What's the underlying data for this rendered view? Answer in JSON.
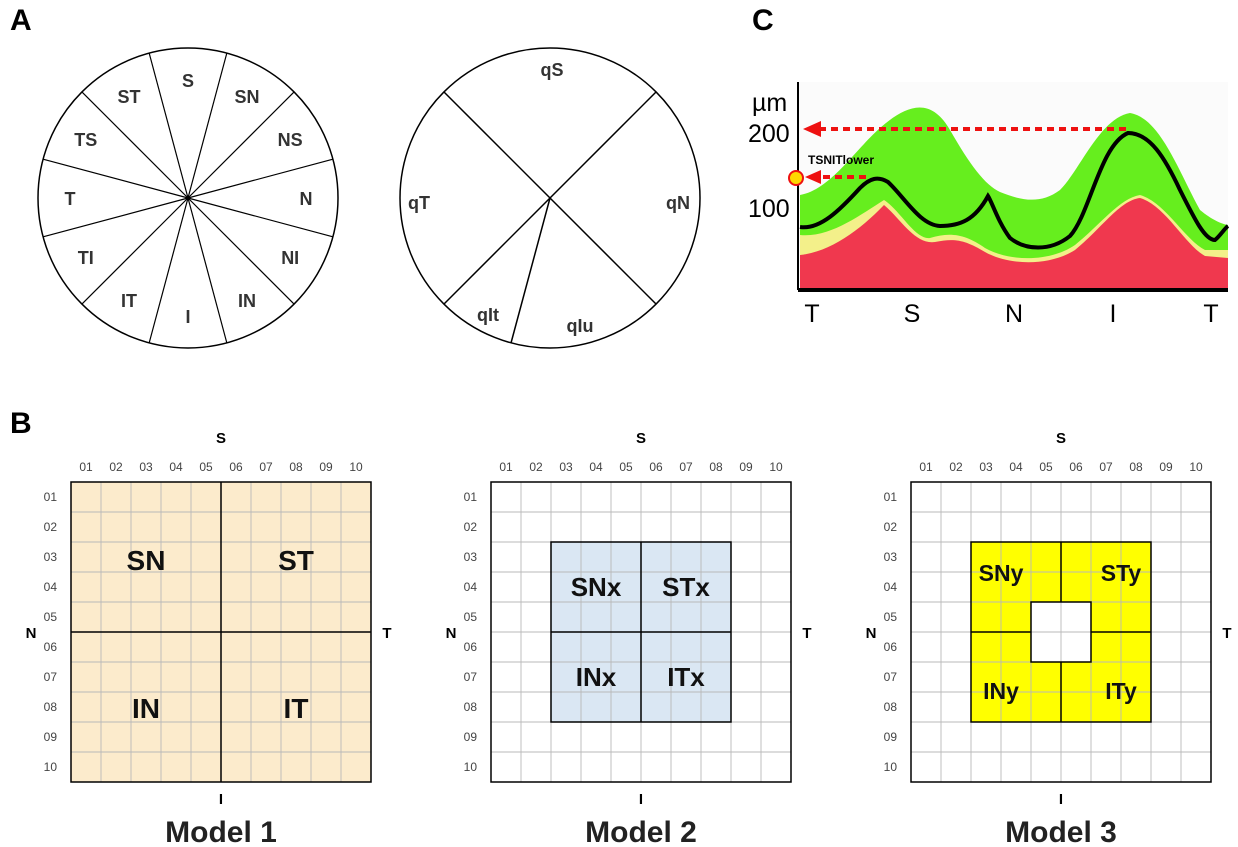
{
  "panels": {
    "a": "A",
    "b": "B",
    "c": "C"
  },
  "sector_labels": [
    "S",
    "SN",
    "NS",
    "N",
    "NI",
    "IN",
    "I",
    "IT",
    "TI",
    "T",
    "TS",
    "ST"
  ],
  "quadrant_labels": {
    "top": "qS",
    "right": "qN",
    "left": "qT",
    "bottom_left": "qIt",
    "bottom_right": "qIu"
  },
  "chart": {
    "y_unit": "µm",
    "y_ticks": [
      "200",
      "100"
    ],
    "x_ticks": [
      "T",
      "S",
      "N",
      "I",
      "T"
    ],
    "annotation": "TSNITlower"
  },
  "grid": {
    "col_headers": [
      "01",
      "02",
      "03",
      "04",
      "05",
      "06",
      "07",
      "08",
      "09",
      "10"
    ],
    "row_headers": [
      "01",
      "02",
      "03",
      "04",
      "05",
      "06",
      "07",
      "08",
      "09",
      "10"
    ],
    "dir_top": "S",
    "dir_bottom": "I",
    "dir_left": "N",
    "dir_right": "T"
  },
  "models": [
    {
      "title": "Model 1",
      "fill": "#fcebcc",
      "labels": [
        "SN",
        "ST",
        "IN",
        "IT"
      ]
    },
    {
      "title": "Model 2",
      "fill": "#dae7f3",
      "labels": [
        "SNx",
        "STx",
        "INx",
        "ITx"
      ]
    },
    {
      "title": "Model 3",
      "fill": "#ffff00",
      "labels": [
        "SNy",
        "STy",
        "INy",
        "ITy"
      ]
    }
  ],
  "colors": {
    "red_band": "#f0384e",
    "yellow_band": "#f3f08a",
    "green_band": "#66ee1e",
    "arrow": "#ee1111"
  }
}
